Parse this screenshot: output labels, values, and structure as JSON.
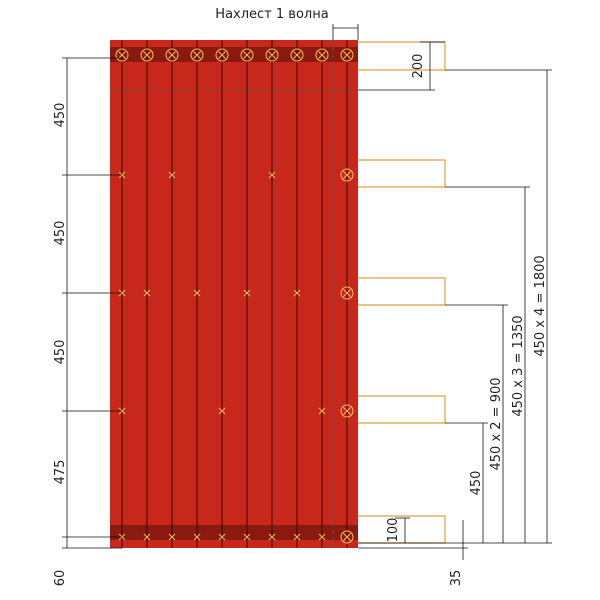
{
  "title": "Нахлест 1 волна",
  "left_dimensions": [
    "450",
    "450",
    "450",
    "475",
    "60"
  ],
  "right_dimensions": {
    "top": "200",
    "bottom": "100",
    "bottom_offset": "35",
    "first": "450",
    "second": "450 x 2 = 900",
    "third": "450 x 3 = 1350",
    "fourth": "450 x 4 = 1800"
  }
}
